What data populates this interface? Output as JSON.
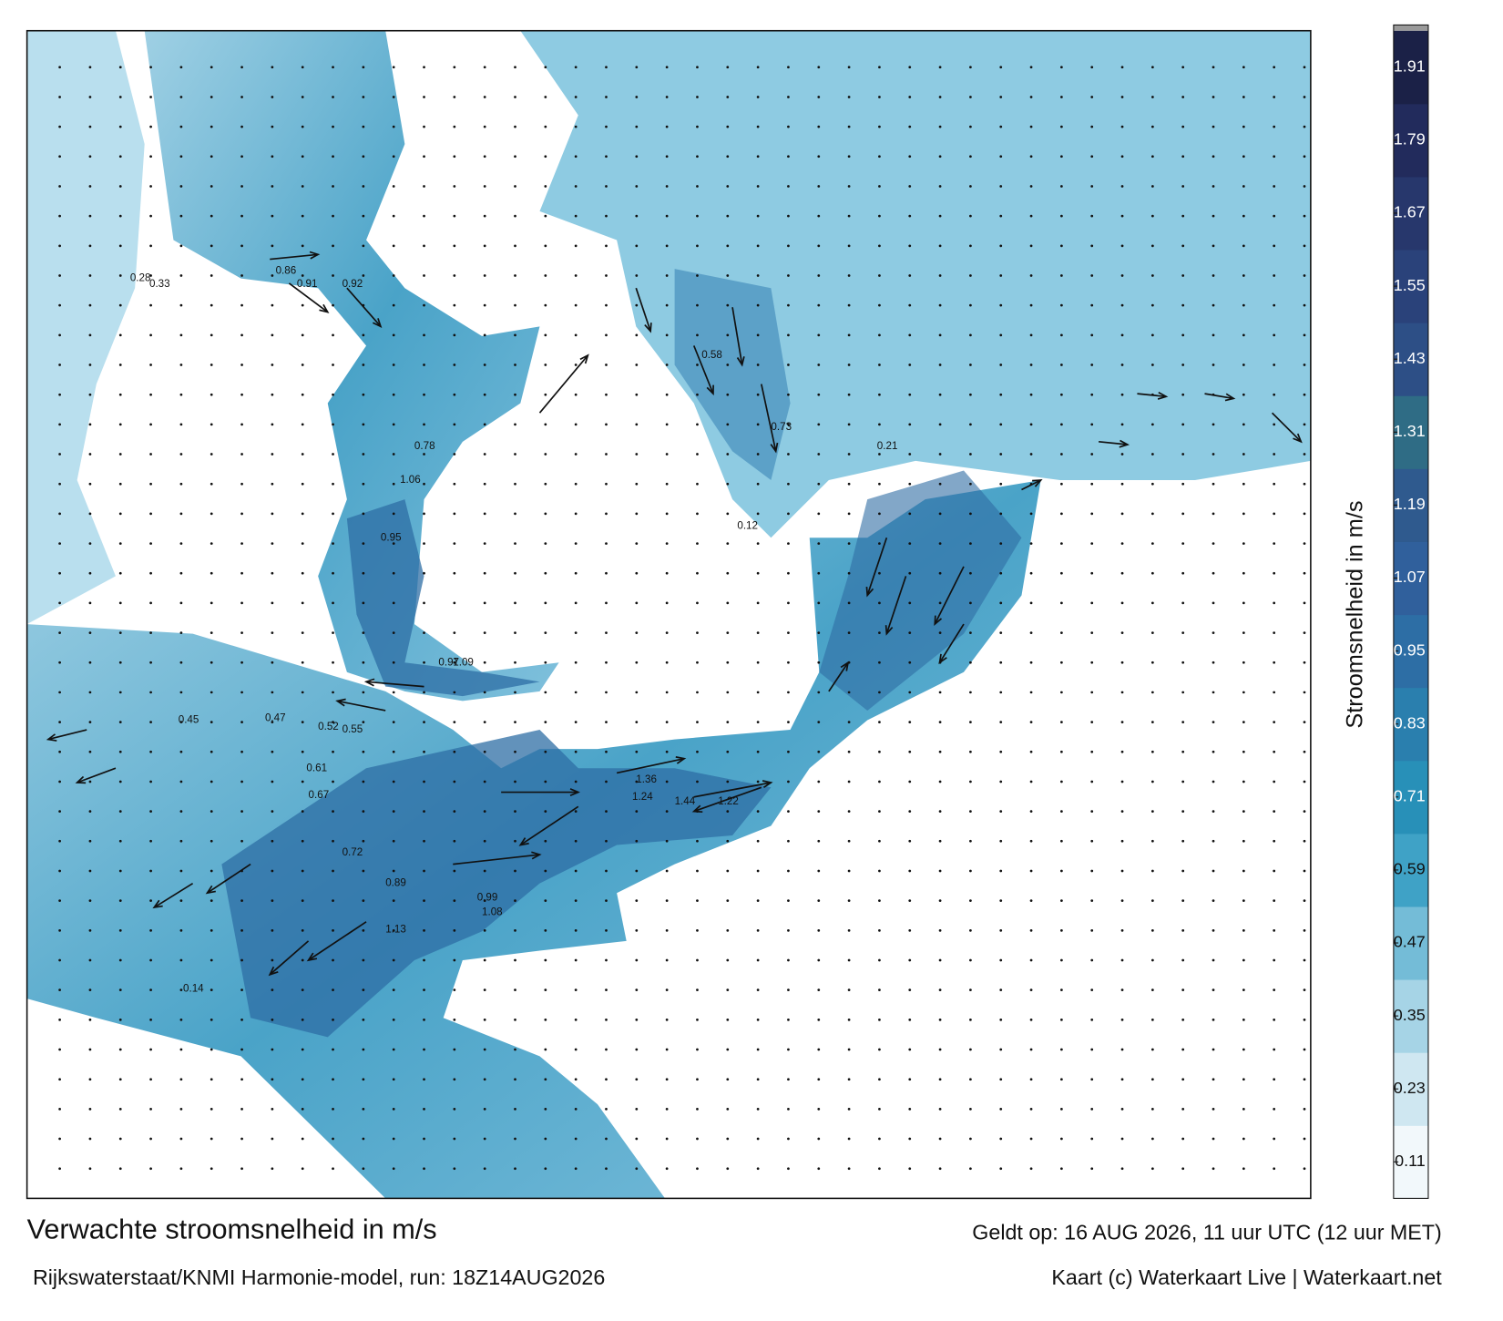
{
  "title": "Verwachte stroomsnelheid in m/s",
  "subtitle": "Rijkswaterstaat/KNMI Harmonie-model, run: 18Z14AUG2026",
  "valid": "Geldt op: 16 AUG 2026, 11 uur UTC (12 uur MET)",
  "credit": "Kaart (c) Waterkaart Live | Waterkaart.net",
  "colorbar": {
    "label": "Stroomsnelheid in m/s",
    "range": [
      0.05,
      1.97
    ],
    "ticks": [
      0.11,
      0.23,
      0.35,
      0.47,
      0.59,
      0.71,
      0.83,
      0.95,
      1.07,
      1.19,
      1.31,
      1.43,
      1.55,
      1.67,
      1.79,
      1.91
    ],
    "colors": [
      "#f2f8fb",
      "#cfe7f1",
      "#a6d4e6",
      "#74bcd7",
      "#3fa2c6",
      "#2890b8",
      "#2a7fae",
      "#2d6ea5",
      "#30609c",
      "#2f5a8e",
      "#2f6c85",
      "#2d4f86",
      "#2a427a",
      "#27376c",
      "#222b5c",
      "#1b2147"
    ]
  },
  "current_labels": [
    0.86,
    0.91,
    0.92,
    0.97,
    1.09,
    0.78,
    1.06,
    0.95,
    0.73,
    0.58,
    1.24,
    1.44,
    1.22,
    1.36,
    0.99,
    1.08,
    0.89,
    1.13,
    0.72,
    0.67,
    0.45,
    0.47,
    0.52,
    0.61,
    0.55,
    0.33,
    0.28,
    0.14,
    0.12,
    0.21
  ]
}
